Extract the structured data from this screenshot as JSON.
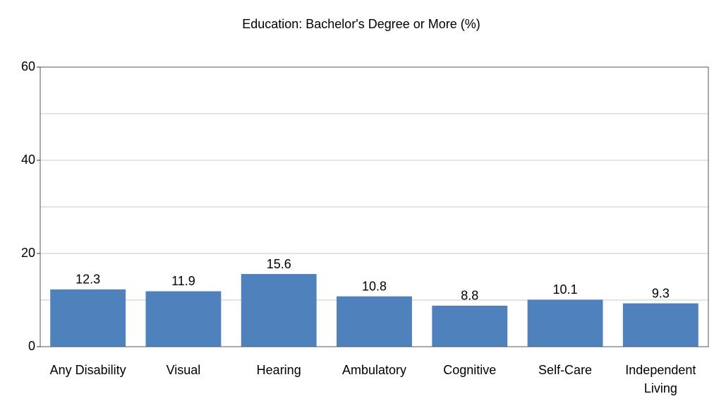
{
  "chart_data": {
    "type": "bar",
    "title": "Education: Bachelor's Degree or More (%)",
    "categories": [
      "Any Disability",
      "Visual",
      "Hearing",
      "Ambulatory",
      "Cognitive",
      "Self-Care",
      "Independent Living"
    ],
    "values": [
      12.3,
      11.9,
      15.6,
      10.8,
      8.8,
      10.1,
      9.3
    ],
    "color": "#4f81bd",
    "ylim": [
      0,
      60
    ],
    "yticks": [
      0,
      20,
      40,
      60
    ],
    "minor_yticks": [
      10,
      30,
      50
    ],
    "grid": true
  }
}
